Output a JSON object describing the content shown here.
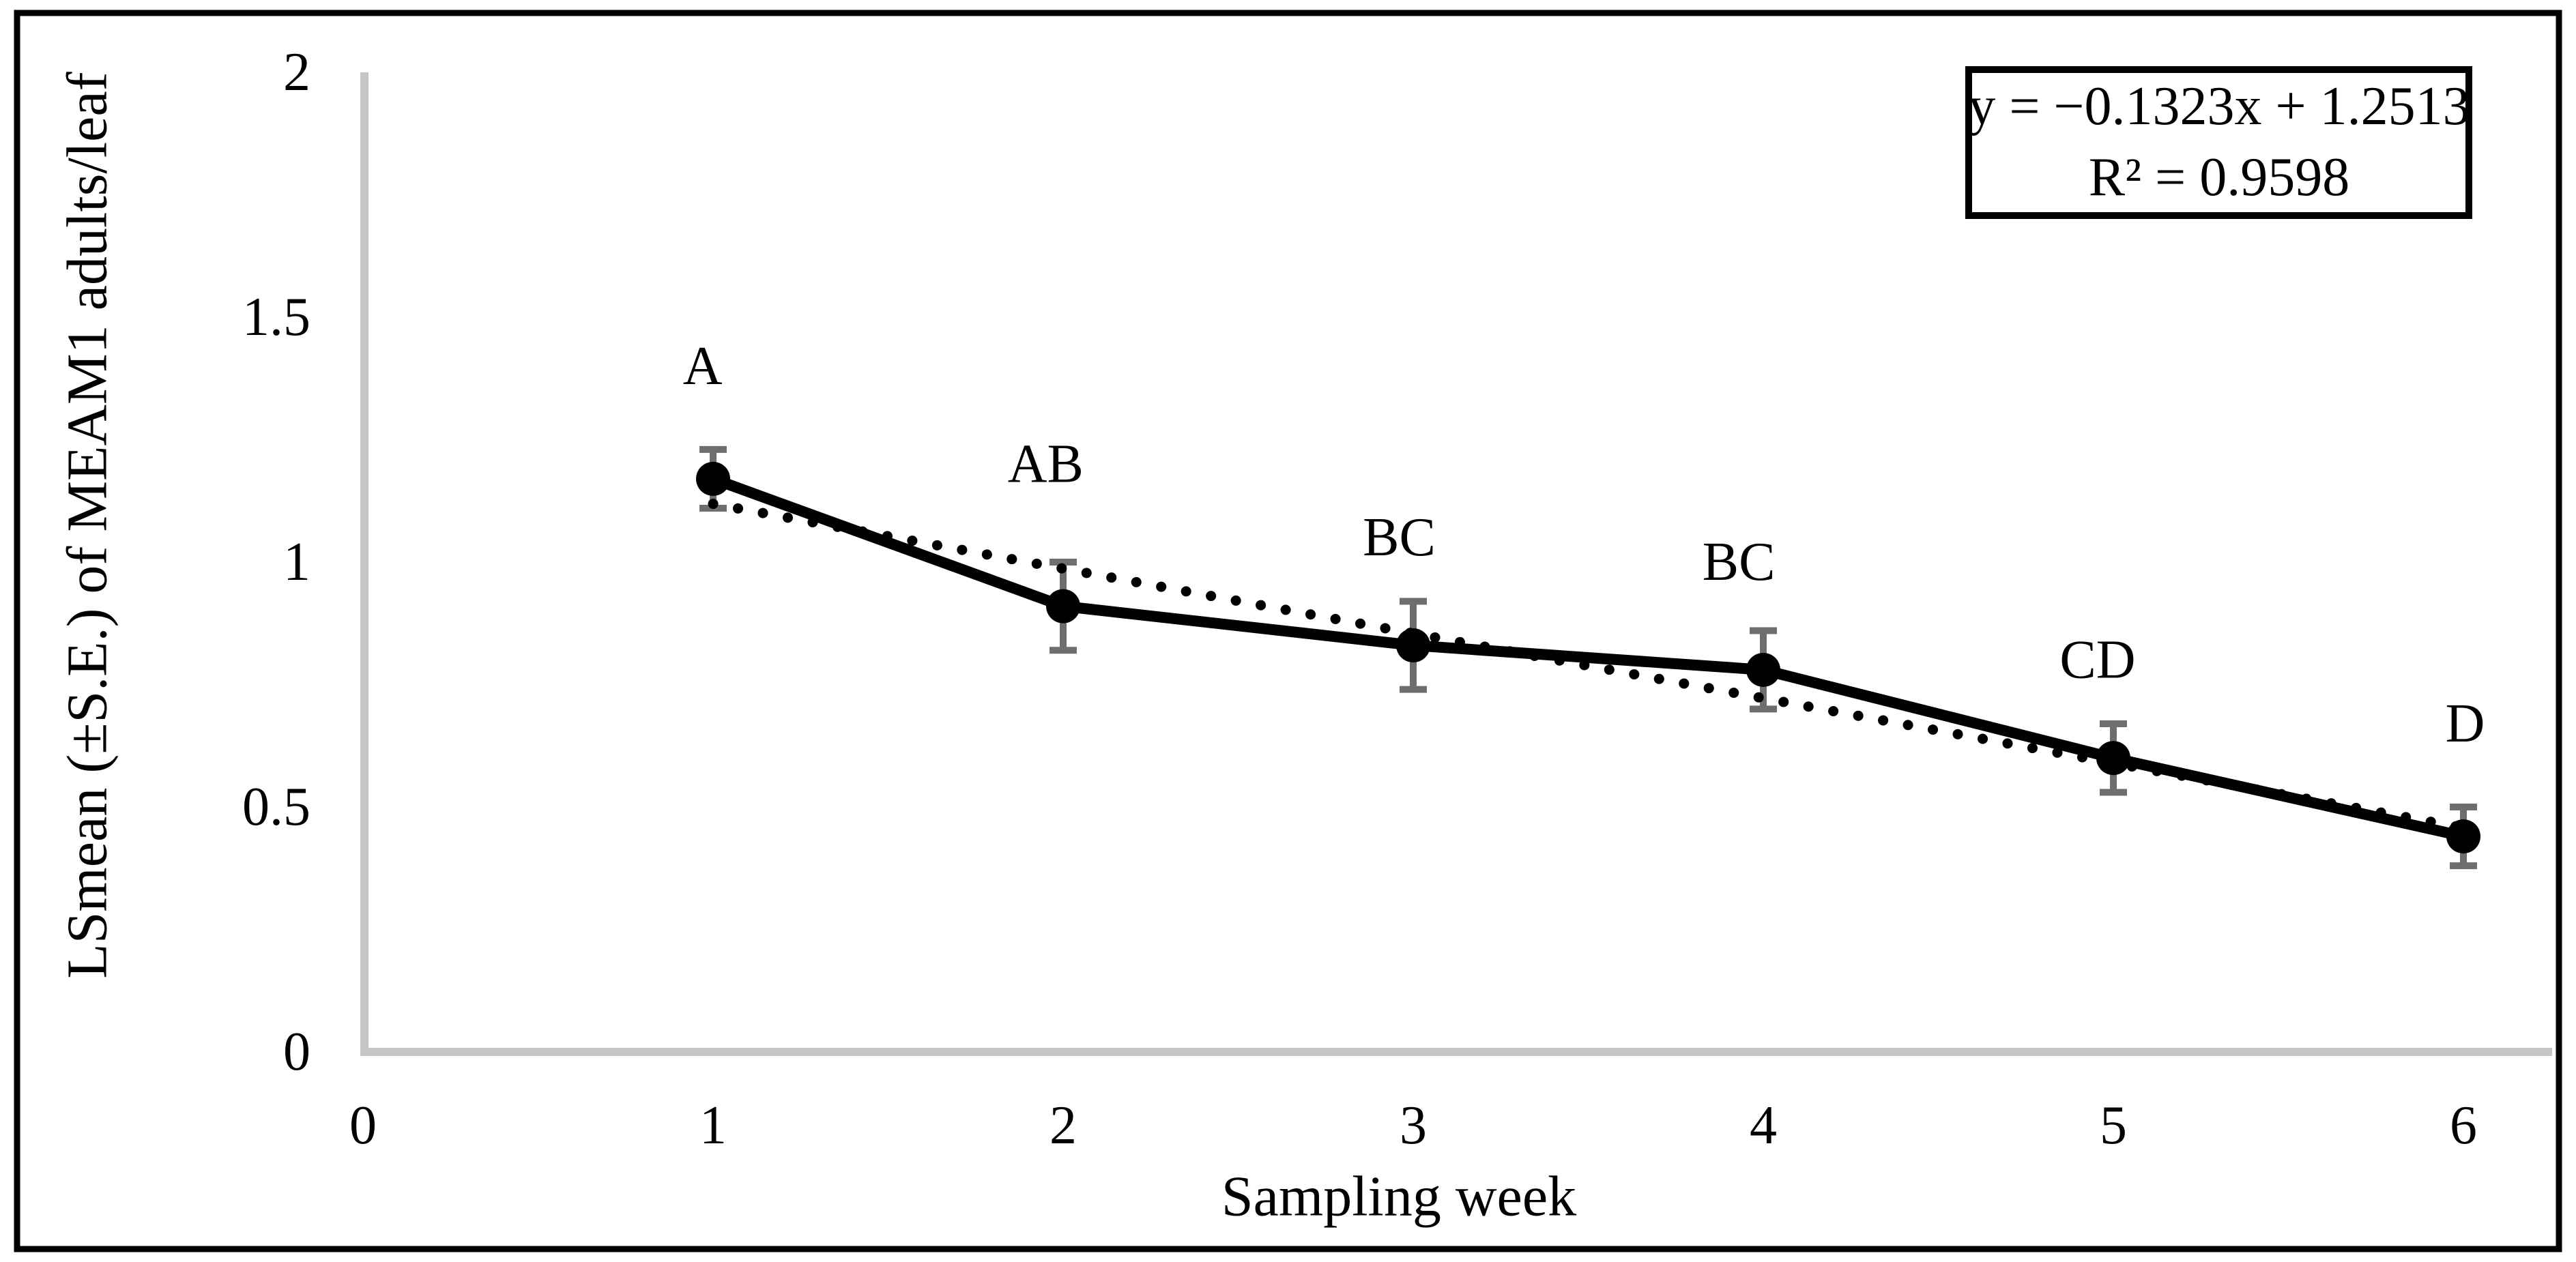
{
  "figure": {
    "background_color": "#ffffff",
    "border_color": "#000000"
  },
  "equation_box": {
    "line1": "y = −0.1323x + 1.2513",
    "line2": "R² = 0.9598"
  },
  "chart_data": {
    "type": "line",
    "title": "",
    "xlabel": "Sampling week",
    "ylabel": "LSmean (±S.E.) of MEAM1 adults/leaf",
    "x": [
      1,
      2,
      3,
      4,
      5,
      6
    ],
    "series": [
      {
        "name": "LSmean of MEAM1 adults per leaf",
        "values": [
          1.17,
          0.91,
          0.83,
          0.78,
          0.6,
          0.44
        ],
        "errors": [
          0.06,
          0.09,
          0.09,
          0.08,
          0.07,
          0.06
        ]
      }
    ],
    "point_labels": [
      "A",
      "AB",
      "BC",
      "BC",
      "CD",
      "D"
    ],
    "point_label_positions": [
      {
        "x": 0.97,
        "y": 1.4
      },
      {
        "x": 1.95,
        "y": 1.2
      },
      {
        "x": 2.96,
        "y": 1.05
      },
      {
        "x": 3.93,
        "y": 1.0
      },
      {
        "x": 4.955,
        "y": 0.8
      },
      {
        "x": 6.005,
        "y": 0.67
      }
    ],
    "x_tick_labels": [
      "0",
      "1",
      "2",
      "3",
      "4",
      "5",
      "6"
    ],
    "x_tick_values": [
      0,
      1,
      2,
      3,
      4,
      5,
      6
    ],
    "y_tick_labels": [
      "0",
      "0.5",
      "1",
      "1.5",
      "2"
    ],
    "y_tick_values": [
      0,
      0.5,
      1,
      1.5,
      2
    ],
    "xlim": [
      0,
      6.25
    ],
    "ylim": [
      0,
      2
    ],
    "grid": false,
    "legend_position": "none",
    "trendline": {
      "slope": -0.1323,
      "intercept": 1.2513,
      "x_start": 1,
      "x_end": 6,
      "style": "dotted",
      "r_squared": 0.9598
    },
    "colors": {
      "series": "#000000",
      "marker": "#000000",
      "trendline": "#000000",
      "error_bar": "#6e6e6e",
      "axis_line": "#c6c6c6"
    }
  }
}
